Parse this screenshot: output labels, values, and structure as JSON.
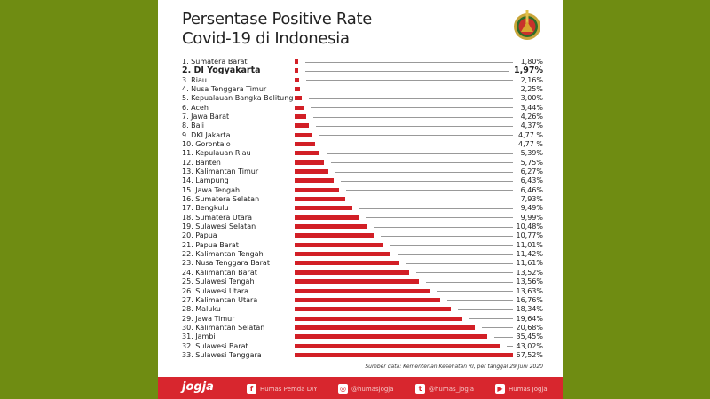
{
  "title_line1": "Persentase Positive Rate",
  "title_line2": "Covid-19 di Indonesia",
  "chart_data": {
    "type": "bar",
    "orientation": "horizontal",
    "highlight_index": 1,
    "bar_color": "#d21f26",
    "categories": [
      "1. Sumatera Barat",
      "2. DI Yogyakarta",
      "3. Riau",
      "4. Nusa Tenggara Timur",
      "5. Kepualauan Bangka Belitung",
      "6. Aceh",
      "7. Jawa Barat",
      "8. Bali",
      "9. DKI Jakarta",
      "10. Gorontalo",
      "11. Kepulauan Riau",
      "12. Banten",
      "13. Kalimantan Timur",
      "14. Lampung",
      "15. Jawa Tengah",
      "16. Sumatera Selatan",
      "17. Bengkulu",
      "18. Sumatera Utara",
      "19. Sulawesi Selatan",
      "20. Papua",
      "21. Papua Barat",
      "22. Kalimantan Tengah",
      "23. Nusa Tenggara Barat",
      "24. Kalimantan Barat",
      "25. Sulawesi Tengah",
      "26. Sulawesi Utara",
      "27. Kalimantan Utara",
      "28. Maluku",
      "29. Jawa Timur",
      "30. Kalimantan Selatan",
      "31. Jambi",
      "32. Sulawesi Barat",
      "33. Sulawesi Tenggara"
    ],
    "values": [
      1.8,
      1.97,
      2.16,
      2.25,
      3.0,
      3.44,
      4.26,
      4.37,
      4.77,
      4.77,
      5.39,
      5.75,
      6.27,
      6.43,
      6.46,
      7.93,
      9.49,
      9.99,
      10.48,
      10.77,
      11.01,
      11.42,
      11.61,
      13.52,
      13.56,
      13.63,
      16.76,
      18.34,
      19.64,
      20.68,
      35.45,
      43.02,
      67.52
    ],
    "labels": [
      "1,80%",
      "1,97%",
      "2,16%",
      "2,25%",
      "3,00%",
      "3,44%",
      "4,26%",
      "4,37%",
      "4,77 %",
      "4,77 %",
      "5,39%",
      "5,75%",
      "6,27%",
      "6,43%",
      "6,46%",
      "7,93%",
      "9,49%",
      "9,99%",
      "10,48%",
      "10,77%",
      "11,01%",
      "11,42%",
      "11,61%",
      "13,52%",
      "13,56%",
      "13,63%",
      "16,76%",
      "18,34%",
      "19,64%",
      "20,68%",
      "35,45%",
      "43,02%",
      "67,52%"
    ]
  },
  "source": "Sumber data: Kementerian Kesehatan RI, per tanggal 29 Juni 2020",
  "footer": {
    "brand": "jogja",
    "facebook": "Humas Pemda DIY",
    "instagram": "@humasjogja",
    "twitter": "@humas_jogja",
    "youtube": "Humas Jogja"
  },
  "colors": {
    "background": "#6f8c12",
    "accent": "#d8262e"
  }
}
